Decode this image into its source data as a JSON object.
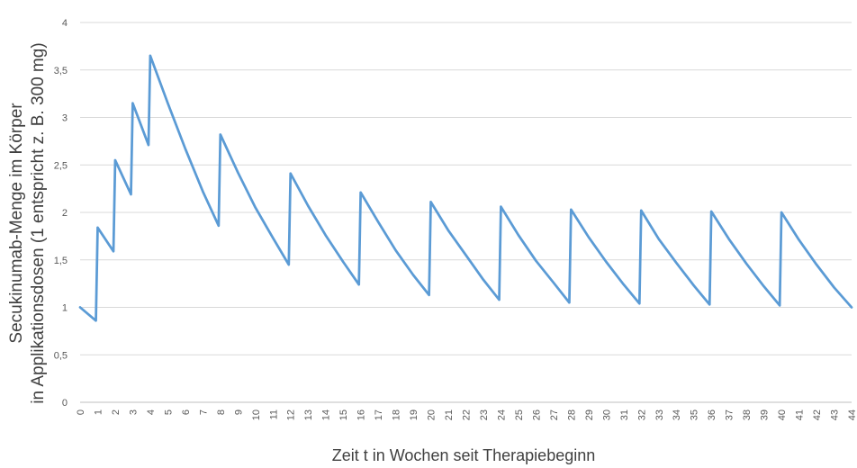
{
  "chart_data": {
    "type": "line",
    "title": "",
    "xlabel": "Zeit t in Wochen seit Therapiebeginn",
    "ylabel_lines": [
      "Secukinumab-Menge im Körper",
      "in Applikationsdosen (1 entspricht z. B. 300 mg)"
    ],
    "ylim": [
      0,
      4
    ],
    "xlim": [
      0,
      44
    ],
    "y_ticks": [
      "0",
      "0,5",
      "1",
      "1,5",
      "2",
      "2,5",
      "3",
      "3,5",
      "4"
    ],
    "x_ticks": [
      "0",
      "1",
      "2",
      "3",
      "4",
      "5",
      "6",
      "7",
      "8",
      "9",
      "10",
      "11",
      "12",
      "13",
      "14",
      "15",
      "16",
      "17",
      "18",
      "19",
      "20",
      "21",
      "22",
      "23",
      "24",
      "25",
      "26",
      "27",
      "28",
      "29",
      "30",
      "31",
      "32",
      "33",
      "34",
      "35",
      "36",
      "37",
      "38",
      "39",
      "40",
      "41",
      "42",
      "43",
      "44"
    ],
    "grid": true,
    "line_color": "#5b9bd5",
    "series": [
      {
        "x": [
          0,
          0.9,
          1,
          1.9,
          2,
          2.9,
          3,
          3.9,
          4,
          5,
          6,
          7,
          7.9,
          8,
          9,
          10,
          11,
          11.9,
          12,
          13,
          14,
          15,
          15.9,
          16,
          17,
          18,
          19,
          19.9,
          20,
          21,
          22,
          23,
          23.9,
          24,
          25,
          26,
          27,
          27.9,
          28,
          29,
          30,
          31,
          31.9,
          32,
          33,
          34,
          35,
          35.9,
          36,
          37,
          38,
          39,
          39.9,
          40,
          41,
          42,
          43,
          44
        ],
        "y": [
          1.0,
          0.86,
          1.84,
          1.59,
          2.55,
          2.19,
          3.15,
          2.71,
          3.65,
          3.15,
          2.67,
          2.22,
          1.86,
          2.82,
          2.42,
          2.05,
          1.73,
          1.45,
          2.41,
          2.07,
          1.76,
          1.48,
          1.24,
          2.21,
          1.9,
          1.6,
          1.34,
          1.13,
          2.11,
          1.81,
          1.55,
          1.29,
          1.08,
          2.06,
          1.76,
          1.49,
          1.26,
          1.05,
          2.03,
          1.74,
          1.48,
          1.24,
          1.04,
          2.02,
          1.72,
          1.47,
          1.23,
          1.03,
          2.01,
          1.72,
          1.46,
          1.22,
          1.02,
          2.0,
          1.71,
          1.45,
          1.21,
          1.0
        ]
      }
    ]
  }
}
